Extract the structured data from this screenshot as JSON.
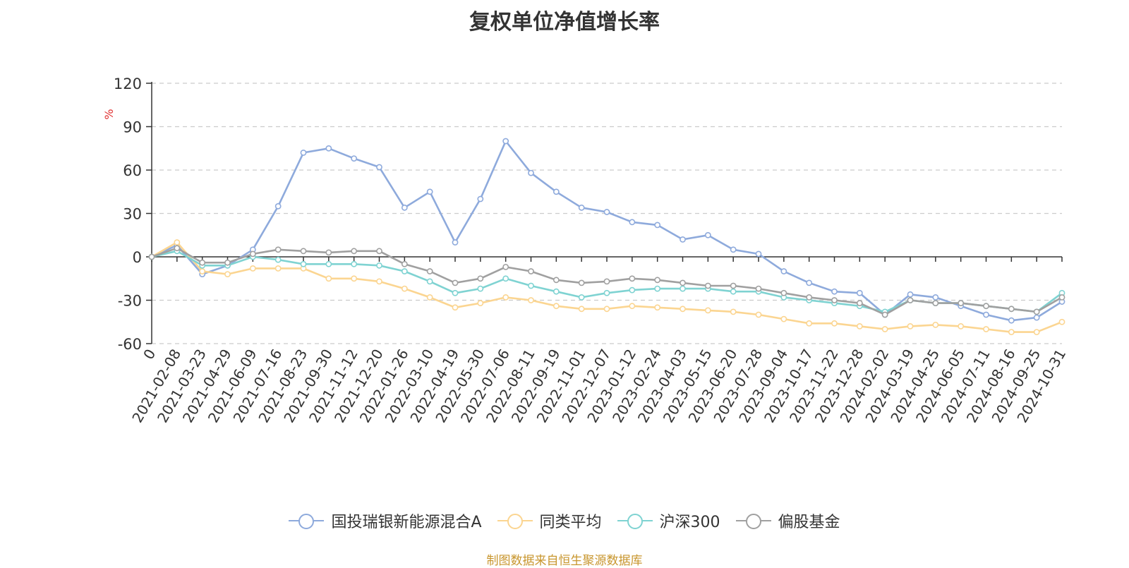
{
  "chart_data": {
    "type": "line",
    "title": "复权单位净值增长率",
    "ylabel": "%",
    "ylim": [
      -60,
      120
    ],
    "yticks": [
      -60,
      -30,
      0,
      30,
      60,
      90,
      120
    ],
    "x": [
      "0",
      "2021-02-08",
      "2021-03-23",
      "2021-04-29",
      "2021-06-09",
      "2021-07-16",
      "2021-08-23",
      "2021-09-30",
      "2021-11-12",
      "2021-12-20",
      "2022-01-26",
      "2022-03-10",
      "2022-04-19",
      "2022-05-30",
      "2022-07-06",
      "2022-08-11",
      "2022-09-19",
      "2022-11-01",
      "2022-12-07",
      "2023-01-12",
      "2023-02-24",
      "2023-04-03",
      "2023-05-15",
      "2023-06-20",
      "2023-07-28",
      "2023-09-04",
      "2023-10-17",
      "2023-11-22",
      "2023-12-28",
      "2024-02-02",
      "2024-03-19",
      "2024-04-25",
      "2024-06-05",
      "2024-07-11",
      "2024-08-16",
      "2024-09-25",
      "2024-10-31"
    ],
    "series": [
      {
        "name": "国投瑞银新能源混合A",
        "color": "#8eaadc",
        "values": [
          0,
          8,
          -12,
          -6,
          5,
          35,
          72,
          75,
          68,
          62,
          34,
          45,
          10,
          40,
          80,
          58,
          45,
          34,
          31,
          24,
          22,
          12,
          15,
          5,
          2,
          -10,
          -18,
          -24,
          -25,
          -40,
          -26,
          -28,
          -34,
          -40,
          -44,
          -42,
          -31
        ]
      },
      {
        "name": "同类平均",
        "color": "#fbd591",
        "values": [
          0,
          10,
          -10,
          -12,
          -8,
          -8,
          -8,
          -15,
          -15,
          -17,
          -22,
          -28,
          -35,
          -32,
          -28,
          -30,
          -34,
          -36,
          -36,
          -34,
          -35,
          -36,
          -37,
          -38,
          -40,
          -43,
          -46,
          -46,
          -48,
          -50,
          -48,
          -47,
          -48,
          -50,
          -52,
          -52,
          -45
        ]
      },
      {
        "name": "沪深300",
        "color": "#7fd3d2",
        "values": [
          0,
          4,
          -6,
          -6,
          0,
          -2,
          -5,
          -5,
          -5,
          -6,
          -10,
          -17,
          -25,
          -22,
          -15,
          -20,
          -24,
          -28,
          -25,
          -23,
          -22,
          -22,
          -22,
          -24,
          -24,
          -28,
          -30,
          -32,
          -34,
          -38,
          -30,
          -32,
          -32,
          -34,
          -36,
          -38,
          -25
        ]
      },
      {
        "name": "偏股基金",
        "color": "#a0a0a0",
        "values": [
          0,
          6,
          -4,
          -4,
          2,
          5,
          4,
          3,
          4,
          4,
          -5,
          -10,
          -18,
          -15,
          -7,
          -10,
          -16,
          -18,
          -17,
          -15,
          -16,
          -18,
          -20,
          -20,
          -22,
          -25,
          -28,
          -30,
          -32,
          -40,
          -30,
          -32,
          -32,
          -34,
          -36,
          -38,
          -28
        ]
      }
    ]
  },
  "source": "制图数据来自恒生聚源数据库"
}
